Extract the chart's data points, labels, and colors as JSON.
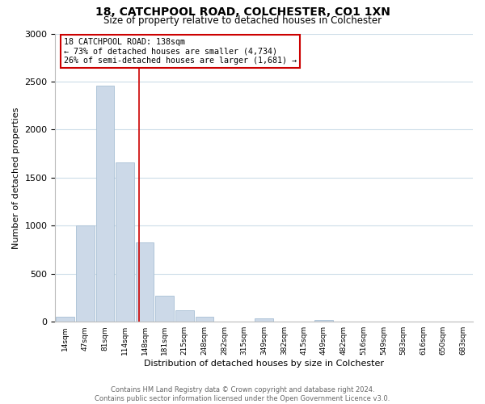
{
  "title": "18, CATCHPOOL ROAD, COLCHESTER, CO1 1XN",
  "subtitle": "Size of property relative to detached houses in Colchester",
  "xlabel": "Distribution of detached houses by size in Colchester",
  "ylabel": "Number of detached properties",
  "bin_labels": [
    "14sqm",
    "47sqm",
    "81sqm",
    "114sqm",
    "148sqm",
    "181sqm",
    "215sqm",
    "248sqm",
    "282sqm",
    "315sqm",
    "349sqm",
    "382sqm",
    "415sqm",
    "449sqm",
    "482sqm",
    "516sqm",
    "549sqm",
    "583sqm",
    "616sqm",
    "650sqm",
    "683sqm"
  ],
  "bar_heights": [
    50,
    1000,
    2460,
    1660,
    830,
    270,
    120,
    50,
    5,
    5,
    35,
    5,
    5,
    20,
    5,
    0,
    0,
    0,
    0,
    0,
    0
  ],
  "bar_color": "#ccd9e8",
  "bar_edge_color": "#a8bfd4",
  "vline_color": "#cc0000",
  "vline_x": 3.73,
  "annotation_title": "18 CATCHPOOL ROAD: 138sqm",
  "annotation_line1": "← 73% of detached houses are smaller (4,734)",
  "annotation_line2": "26% of semi-detached houses are larger (1,681) →",
  "annotation_box_color": "#ffffff",
  "annotation_box_edge": "#cc0000",
  "ylim": [
    0,
    3000
  ],
  "yticks": [
    0,
    500,
    1000,
    1500,
    2000,
    2500,
    3000
  ],
  "footer_line1": "Contains HM Land Registry data © Crown copyright and database right 2024.",
  "footer_line2": "Contains public sector information licensed under the Open Government Licence v3.0.",
  "bg_color": "#ffffff",
  "grid_color": "#ccdde8"
}
